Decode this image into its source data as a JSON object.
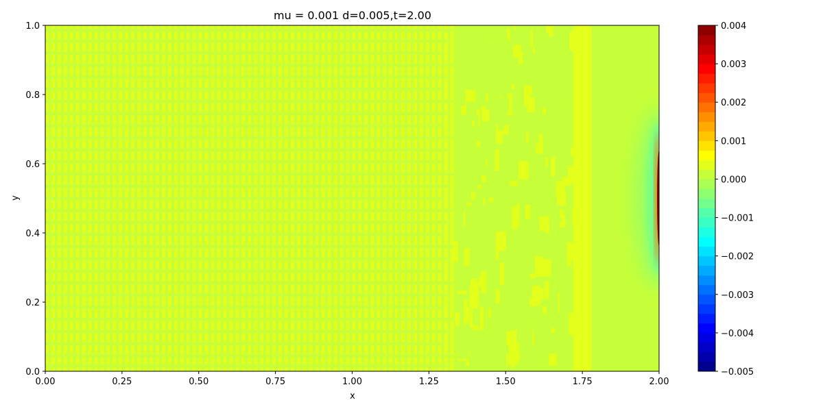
{
  "chart_data": {
    "type": "heatmap",
    "title": "mu = 0.001 d=0.005,t=2.00",
    "xlabel": "x",
    "ylabel": "y",
    "xlim": [
      0.0,
      2.0
    ],
    "ylim": [
      0.0,
      1.0
    ],
    "x_ticks": [
      0.0,
      0.25,
      0.5,
      0.75,
      1.0,
      1.25,
      1.5,
      1.75,
      2.0
    ],
    "x_tick_labels": [
      "0.00",
      "0.25",
      "0.50",
      "0.75",
      "1.00",
      "1.25",
      "1.50",
      "1.75",
      "2.00"
    ],
    "y_ticks": [
      0.0,
      0.2,
      0.4,
      0.6,
      0.8,
      1.0
    ],
    "y_tick_labels": [
      "0.0",
      "0.2",
      "0.4",
      "0.6",
      "0.8",
      "1.0"
    ],
    "colormap": "jet",
    "colorbar": {
      "vmin": -0.005,
      "vmax": 0.004,
      "ticks": [
        0.004,
        0.003,
        0.002,
        0.001,
        0.0,
        -0.001,
        -0.002,
        -0.003,
        -0.004,
        -0.005
      ],
      "tick_labels": [
        "0.004",
        "0.003",
        "0.002",
        "0.001",
        "0.000",
        "−0.001",
        "−0.002",
        "−0.003",
        "−0.004",
        "−0.005"
      ],
      "levels": 36
    },
    "field": {
      "background_value": 0.0002,
      "stripe_value": 0.0004,
      "stripe_region_x": [
        0.0,
        1.33
      ],
      "stripe_period_x": 0.02,
      "transition_region_x": [
        1.33,
        1.72
      ],
      "band_x": [
        1.72,
        1.78
      ],
      "band_value": 0.0005,
      "right_region_x": [
        1.78,
        2.0
      ],
      "right_value": 0.0001,
      "outlet_peak_value": 0.004,
      "outlet_peak_x": 2.0,
      "outlet_peak_y": 0.5,
      "outlet_negative_halo_value": -0.0005
    }
  }
}
